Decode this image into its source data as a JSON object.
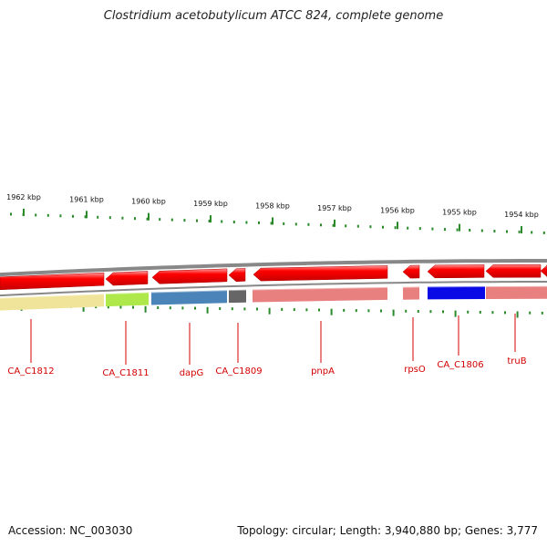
{
  "title": "Clostridium acetobutylicum ATCC 824, complete genome",
  "footer": {
    "accession": "Accession: NC_003030",
    "topology": "Topology: circular; Length: 3,940,880 bp; Genes: 3,777"
  },
  "scale": {
    "ticks": [
      {
        "kbp": 1962,
        "label": "1962 kbp"
      },
      {
        "kbp": 1961,
        "label": "1961 kbp"
      },
      {
        "kbp": 1960,
        "label": "1960 kbp"
      },
      {
        "kbp": 1959,
        "label": "1959 kbp"
      },
      {
        "kbp": 1958,
        "label": "1958 kbp"
      },
      {
        "kbp": 1957,
        "label": "1957 kbp"
      },
      {
        "kbp": 1956,
        "label": "1956 kbp"
      },
      {
        "kbp": 1955,
        "label": "1955 kbp"
      },
      {
        "kbp": 1954,
        "label": "1954 kbp"
      }
    ]
  },
  "genes": [
    {
      "name": "CA_C1812",
      "color": "#f0e49a"
    },
    {
      "name": "CA_C1811",
      "color": "#aee84a"
    },
    {
      "name": "dapG",
      "color": "#4a84b8"
    },
    {
      "name": "CA_C1809",
      "color": "#666666"
    },
    {
      "name": "pnpA",
      "color": "#e88080"
    },
    {
      "name": "rpsO",
      "color": "#e88080"
    },
    {
      "name": "CA_C1806",
      "color": "#0a0ae6"
    },
    {
      "name": "truB",
      "color": "#e88080"
    }
  ],
  "colors": {
    "feature_red": "#ee0000",
    "backbone": "#888888",
    "tick_green": "#2a8a2a",
    "label_red": "#d40000"
  }
}
